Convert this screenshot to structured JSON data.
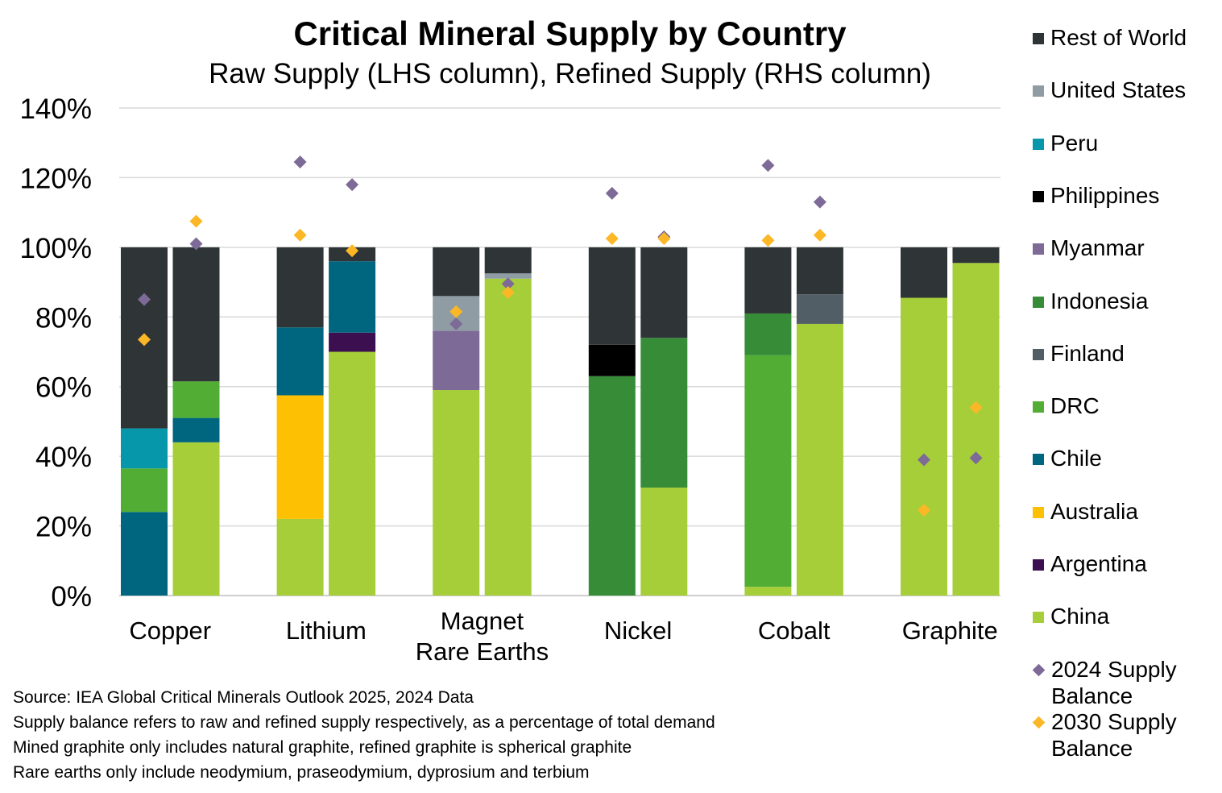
{
  "chart_data": {
    "type": "stacked-bar",
    "title": "Critical Mineral Supply by Country",
    "subtitle": "Raw Supply (LHS column), Refined Supply (RHS column)",
    "ylim": [
      0,
      140
    ],
    "y_ticks": [
      0,
      20,
      40,
      60,
      80,
      100,
      120,
      140
    ],
    "y_tick_labels": [
      "0%",
      "20%",
      "40%",
      "60%",
      "80%",
      "100%",
      "120%",
      "140%"
    ],
    "grid": true,
    "legend_position": "right",
    "categories": [
      {
        "label": [
          "Copper"
        ]
      },
      {
        "label": [
          "Lithium"
        ]
      },
      {
        "label": [
          "Magnet",
          "Rare Earths"
        ]
      },
      {
        "label": [
          "Nickel"
        ]
      },
      {
        "label": [
          "Cobalt"
        ]
      },
      {
        "label": [
          "Graphite"
        ]
      }
    ],
    "countries": {
      "rest_of_world": {
        "name": "Rest of World",
        "color": "#2f3437"
      },
      "united_states": {
        "name": "United States",
        "color": "#8f9ca3"
      },
      "peru": {
        "name": "Peru",
        "color": "#0797aa"
      },
      "philippines": {
        "name": "Philippines",
        "color": "#000000"
      },
      "myanmar": {
        "name": "Myanmar",
        "color": "#7d6a97"
      },
      "indonesia": {
        "name": "Indonesia",
        "color": "#368c37"
      },
      "finland": {
        "name": "Finland",
        "color": "#525e66"
      },
      "drc": {
        "name": "DRC",
        "color": "#52ad34"
      },
      "chile": {
        "name": "Chile",
        "color": "#00657f"
      },
      "australia": {
        "name": "Australia",
        "color": "#fec002"
      },
      "argentina": {
        "name": "Argentina",
        "color": "#3b0f50"
      },
      "china": {
        "name": "China",
        "color": "#a6ce39"
      }
    },
    "legend_order": [
      "rest_of_world",
      "united_states",
      "peru",
      "philippines",
      "myanmar",
      "indonesia",
      "finland",
      "drc",
      "chile",
      "australia",
      "argentina",
      "china",
      "balance_2024",
      "balance_2030"
    ],
    "balance_series": {
      "balance_2024": {
        "name": "2024 Supply Balance",
        "color": "#7d6a97"
      },
      "balance_2030": {
        "name": "2030 Supply Balance",
        "color": "#fbb726"
      }
    },
    "columns": [
      {
        "category": 0,
        "side": "raw",
        "balance_2024": 85,
        "balance_2030": 73.5,
        "segments": [
          {
            "country": "chile",
            "value": 24
          },
          {
            "country": "drc",
            "value": 12.5
          },
          {
            "country": "peru",
            "value": 11.5
          },
          {
            "country": "rest_of_world",
            "value": 52
          }
        ]
      },
      {
        "category": 0,
        "side": "refined",
        "balance_2024": 101,
        "balance_2030": 107.5,
        "segments": [
          {
            "country": "china",
            "value": 44
          },
          {
            "country": "chile",
            "value": 7
          },
          {
            "country": "drc",
            "value": 10.5
          },
          {
            "country": "rest_of_world",
            "value": 38.5
          }
        ]
      },
      {
        "category": 1,
        "side": "raw",
        "balance_2024": 124.5,
        "balance_2030": 103.5,
        "segments": [
          {
            "country": "china",
            "value": 22
          },
          {
            "country": "australia",
            "value": 35.5
          },
          {
            "country": "chile",
            "value": 19.5
          },
          {
            "country": "rest_of_world",
            "value": 23
          }
        ]
      },
      {
        "category": 1,
        "side": "refined",
        "balance_2024": 118,
        "balance_2030": 99,
        "segments": [
          {
            "country": "china",
            "value": 70
          },
          {
            "country": "argentina",
            "value": 5.5
          },
          {
            "country": "chile",
            "value": 20.5
          },
          {
            "country": "rest_of_world",
            "value": 4
          }
        ]
      },
      {
        "category": 2,
        "side": "raw",
        "balance_2024": 78,
        "balance_2030": 81.5,
        "segments": [
          {
            "country": "china",
            "value": 59
          },
          {
            "country": "myanmar",
            "value": 17
          },
          {
            "country": "united_states",
            "value": 10
          },
          {
            "country": "rest_of_world",
            "value": 14
          }
        ]
      },
      {
        "category": 2,
        "side": "refined",
        "balance_2024": 89.5,
        "balance_2030": 87,
        "segments": [
          {
            "country": "china",
            "value": 91
          },
          {
            "country": "united_states",
            "value": 1.5
          },
          {
            "country": "rest_of_world",
            "value": 7.5
          }
        ]
      },
      {
        "category": 3,
        "side": "raw",
        "balance_2024": 115.5,
        "balance_2030": 102.5,
        "segments": [
          {
            "country": "indonesia",
            "value": 63
          },
          {
            "country": "philippines",
            "value": 9
          },
          {
            "country": "rest_of_world",
            "value": 28
          }
        ]
      },
      {
        "category": 3,
        "side": "refined",
        "balance_2024": 103,
        "balance_2030": 102.5,
        "segments": [
          {
            "country": "china",
            "value": 31
          },
          {
            "country": "indonesia",
            "value": 43
          },
          {
            "country": "rest_of_world",
            "value": 26
          }
        ]
      },
      {
        "category": 4,
        "side": "raw",
        "balance_2024": 123.5,
        "balance_2030": 102,
        "segments": [
          {
            "country": "china",
            "value": 2.5
          },
          {
            "country": "drc",
            "value": 66.5
          },
          {
            "country": "indonesia",
            "value": 12
          },
          {
            "country": "rest_of_world",
            "value": 19
          }
        ]
      },
      {
        "category": 4,
        "side": "refined",
        "balance_2024": 113,
        "balance_2030": 103.5,
        "segments": [
          {
            "country": "china",
            "value": 78
          },
          {
            "country": "finland",
            "value": 8.5
          },
          {
            "country": "rest_of_world",
            "value": 13.5
          }
        ]
      },
      {
        "category": 5,
        "side": "raw",
        "balance_2024": 39,
        "balance_2030": 24.5,
        "segments": [
          {
            "country": "china",
            "value": 85.5
          },
          {
            "country": "rest_of_world",
            "value": 14.5
          }
        ]
      },
      {
        "category": 5,
        "side": "refined",
        "balance_2024": 39.5,
        "balance_2030": 54,
        "segments": [
          {
            "country": "china",
            "value": 95.5
          },
          {
            "country": "rest_of_world",
            "value": 4.5
          }
        ]
      }
    ]
  },
  "notes": [
    "Source: IEA Global Critical Minerals Outlook 2025, 2024 Data",
    "Supply balance refers to raw and refined supply respectively, as a percentage of total demand",
    "Mined graphite only includes natural graphite, refined graphite is spherical graphite",
    "Rare earths only include neodymium, praseodymium, dyprosium and terbium"
  ]
}
